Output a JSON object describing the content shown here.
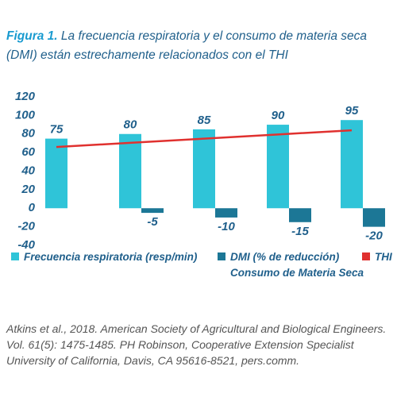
{
  "chart_data": {
    "type": "bar",
    "title_label": "Figura 1.",
    "title": "La frecuencia respiratoria y el consumo de materia seca (DMI) están estrechamente relacionados con el THI",
    "categories": [
      null,
      null,
      null,
      null,
      null
    ],
    "series": [
      {
        "name": "Frecuencia respiratoria (resp/min)",
        "color": "#2fc4d8",
        "values": [
          75,
          80,
          85,
          90,
          95
        ]
      },
      {
        "name": "DMI (% de reducción) Consumo de Materia Seca",
        "color": "#1c7796",
        "values": [
          null,
          -5,
          -10,
          -15,
          -20
        ]
      },
      {
        "name": "THI",
        "type": "line",
        "color": "#e0312f",
        "values": [
          66,
          70.5,
          75,
          79.5,
          84
        ]
      }
    ],
    "ylim": [
      -40,
      120
    ],
    "yticks": [
      -40,
      -20,
      0,
      20,
      40,
      60,
      80,
      100,
      120
    ],
    "grid": false,
    "legend": "bottom",
    "source": "Atkins et al., 2018. American Society of Agricultural and Biological Engineers. Vol. 61(5): 1475-1485. PH Robinson, Cooperative Extension Specialist University of California, Davis, CA 95616-8521, pers.comm."
  }
}
